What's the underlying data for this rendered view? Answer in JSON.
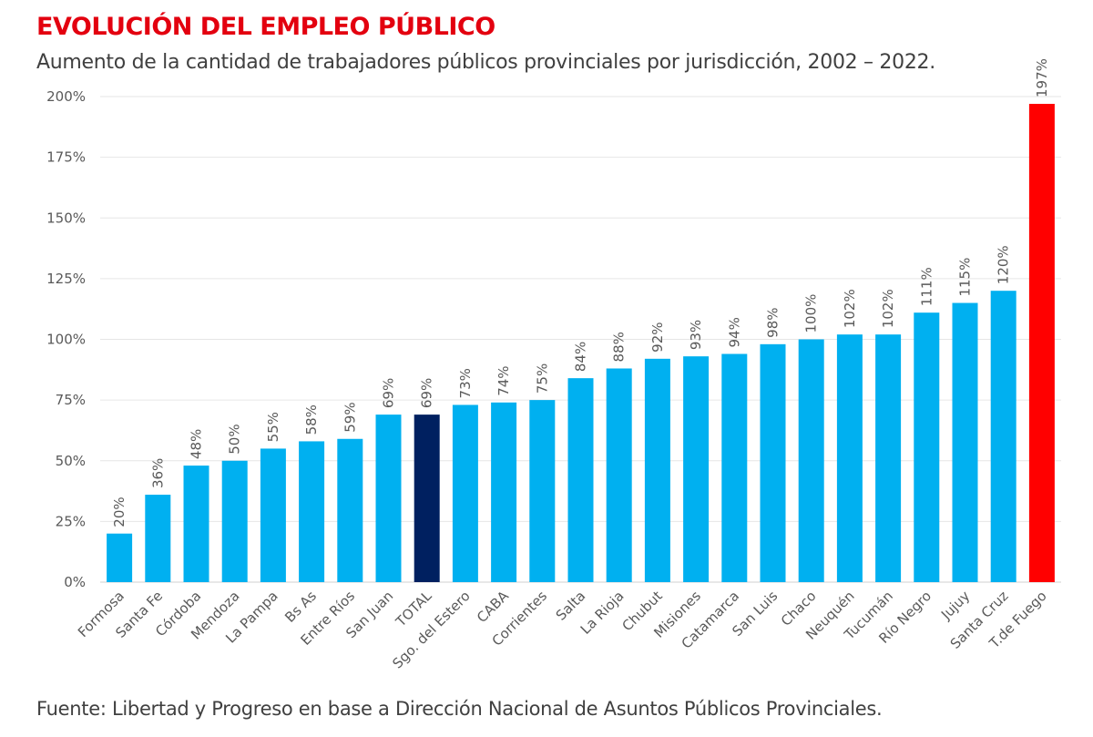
{
  "chart_data": {
    "type": "bar",
    "title": "EVOLUCIÓN DEL EMPLEO PÚBLICO",
    "subtitle": "Aumento de la cantidad de trabajadores públicos provinciales por jurisdicción, 2002 – 2022.",
    "source": "Fuente: Libertad y Progreso en base a Dirección Nacional de Asuntos Públicos Provinciales.",
    "categories": [
      "Formosa",
      "Santa Fe",
      "Córdoba",
      "Mendoza",
      "La Pampa",
      "Bs As",
      "Entre Ríos",
      "San Juan",
      "TOTAL",
      "Sgo. del Estero",
      "CABA",
      "Corrientes",
      "Salta",
      "La Rioja",
      "Chubut",
      "Misiones",
      "Catamarca",
      "San Luis",
      "Chaco",
      "Neuquén",
      "Tucumán",
      "Río Negro",
      "Jujuy",
      "Santa Cruz",
      "T.de Fuego"
    ],
    "values": [
      20,
      36,
      48,
      50,
      55,
      58,
      59,
      69,
      69,
      73,
      74,
      75,
      84,
      88,
      92,
      93,
      94,
      98,
      100,
      102,
      102,
      111,
      115,
      120,
      197
    ],
    "data_labels": [
      "20%",
      "36%",
      "48%",
      "50%",
      "55%",
      "58%",
      "59%",
      "69%",
      "69%",
      "73%",
      "74%",
      "75%",
      "84%",
      "88%",
      "92%",
      "93%",
      "94%",
      "98%",
      "100%",
      "102%",
      "102%",
      "111%",
      "115%",
      "120%",
      "197%"
    ],
    "ylim": [
      0,
      200
    ],
    "yticks": [
      "0%",
      "25%",
      "50%",
      "75%",
      "100%",
      "125%",
      "150%",
      "175%",
      "200%"
    ],
    "grid": true,
    "legend": "none",
    "colors": {
      "default": "#00b0f0",
      "TOTAL": "#002060",
      "T.de Fuego": "#ff0000"
    }
  }
}
